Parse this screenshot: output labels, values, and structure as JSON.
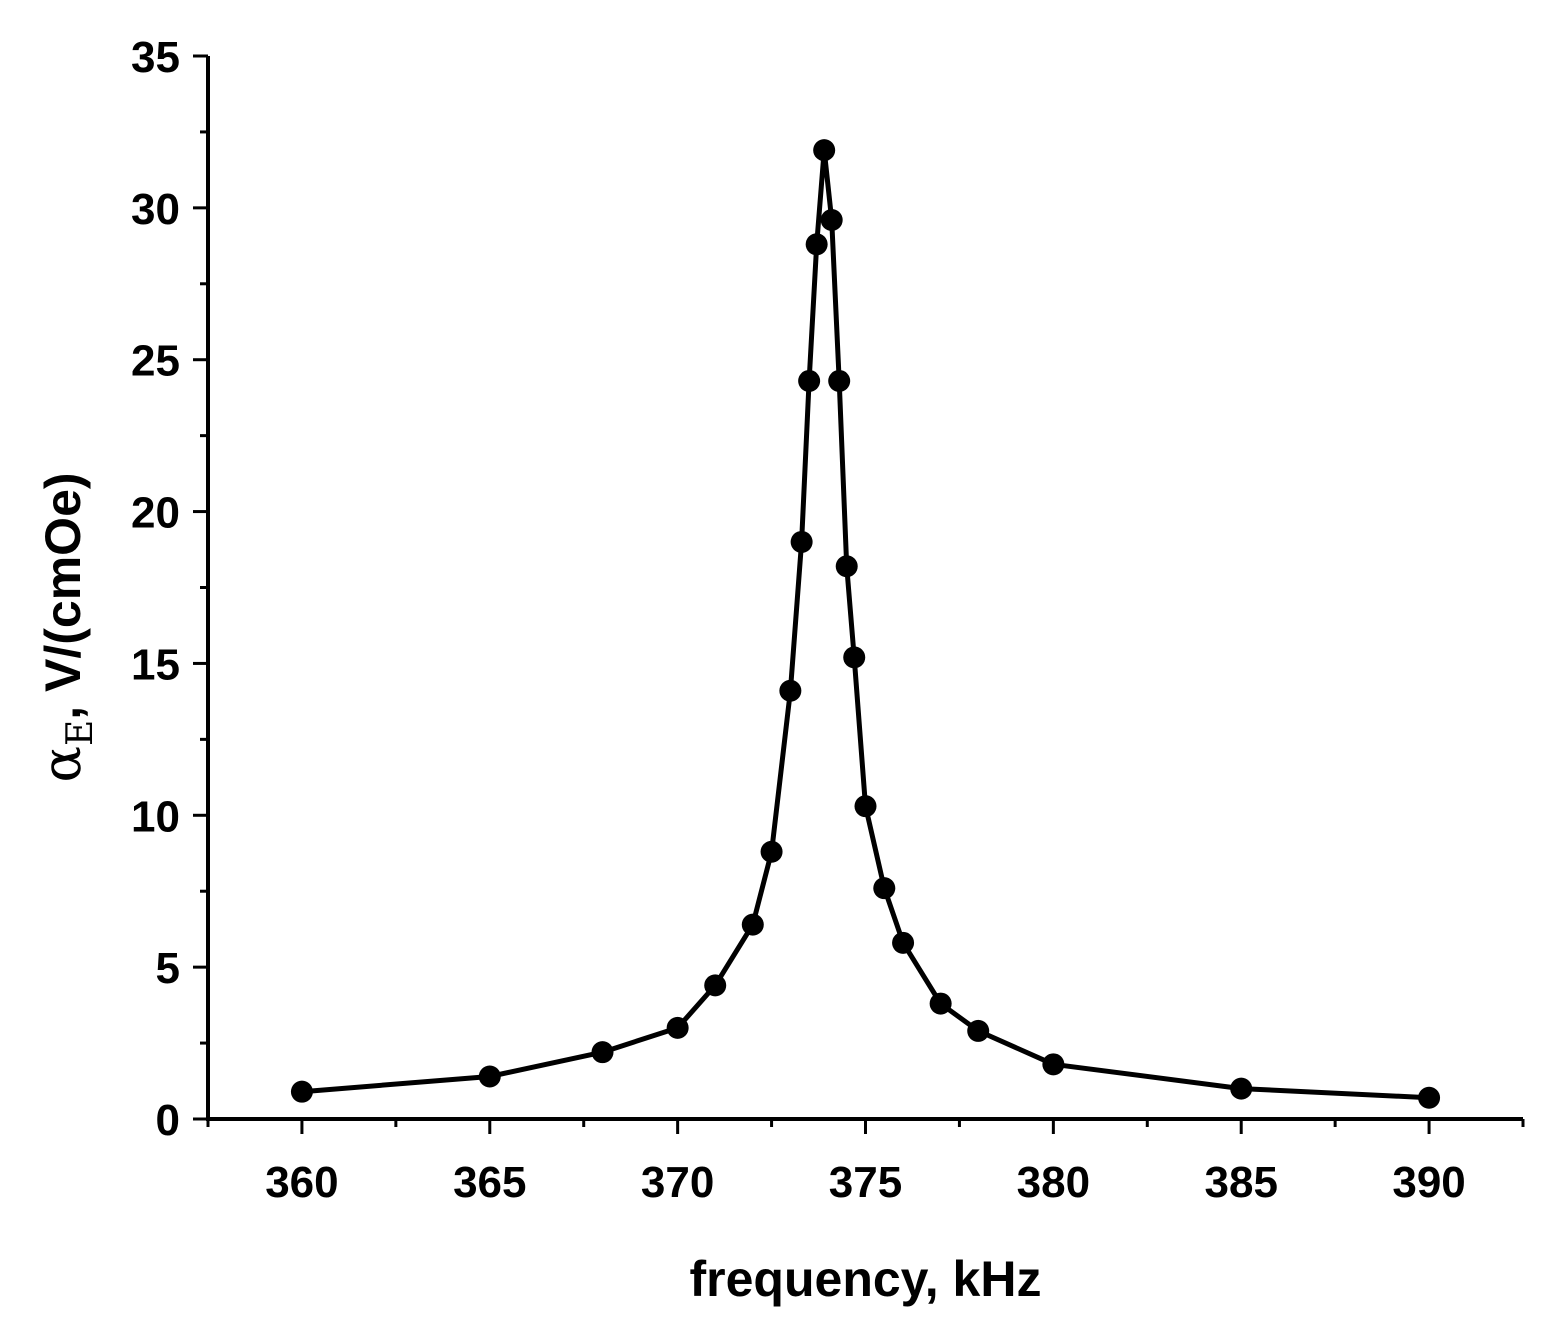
{
  "chart_data": {
    "type": "line",
    "title": "",
    "xlabel": "frequency, kHz",
    "ylabel": {
      "symbol": "α",
      "subscript": "E",
      "rest": ", V/(cmOe)"
    },
    "xlim": [
      357.5,
      392.5
    ],
    "ylim": [
      0,
      35
    ],
    "x_ticks": [
      360,
      365,
      370,
      375,
      380,
      385,
      390
    ],
    "y_ticks": [
      0,
      5,
      10,
      15,
      20,
      25,
      30,
      35
    ],
    "x_tick_labels": [
      "360",
      "365",
      "370",
      "375",
      "380",
      "385",
      "390"
    ],
    "y_tick_labels": [
      "0",
      "5",
      "10",
      "15",
      "20",
      "25",
      "30",
      "35"
    ],
    "grid": false,
    "legend": "none",
    "series": [
      {
        "marker": "filled-circle",
        "color": "#000000",
        "x": [
          360,
          365,
          368,
          370,
          371,
          372,
          372.5,
          373,
          373.3,
          373.5,
          373.7,
          373.9,
          374.1,
          374.3,
          374.5,
          374.7,
          375,
          375.5,
          376,
          377,
          378,
          380,
          385,
          390
        ],
        "y": [
          0.9,
          1.4,
          2.2,
          3.0,
          4.4,
          6.4,
          8.8,
          14.1,
          19.0,
          24.3,
          28.8,
          31.9,
          29.6,
          24.3,
          18.2,
          15.2,
          10.3,
          7.6,
          5.8,
          3.8,
          2.9,
          1.8,
          1.0,
          0.7
        ]
      }
    ]
  }
}
